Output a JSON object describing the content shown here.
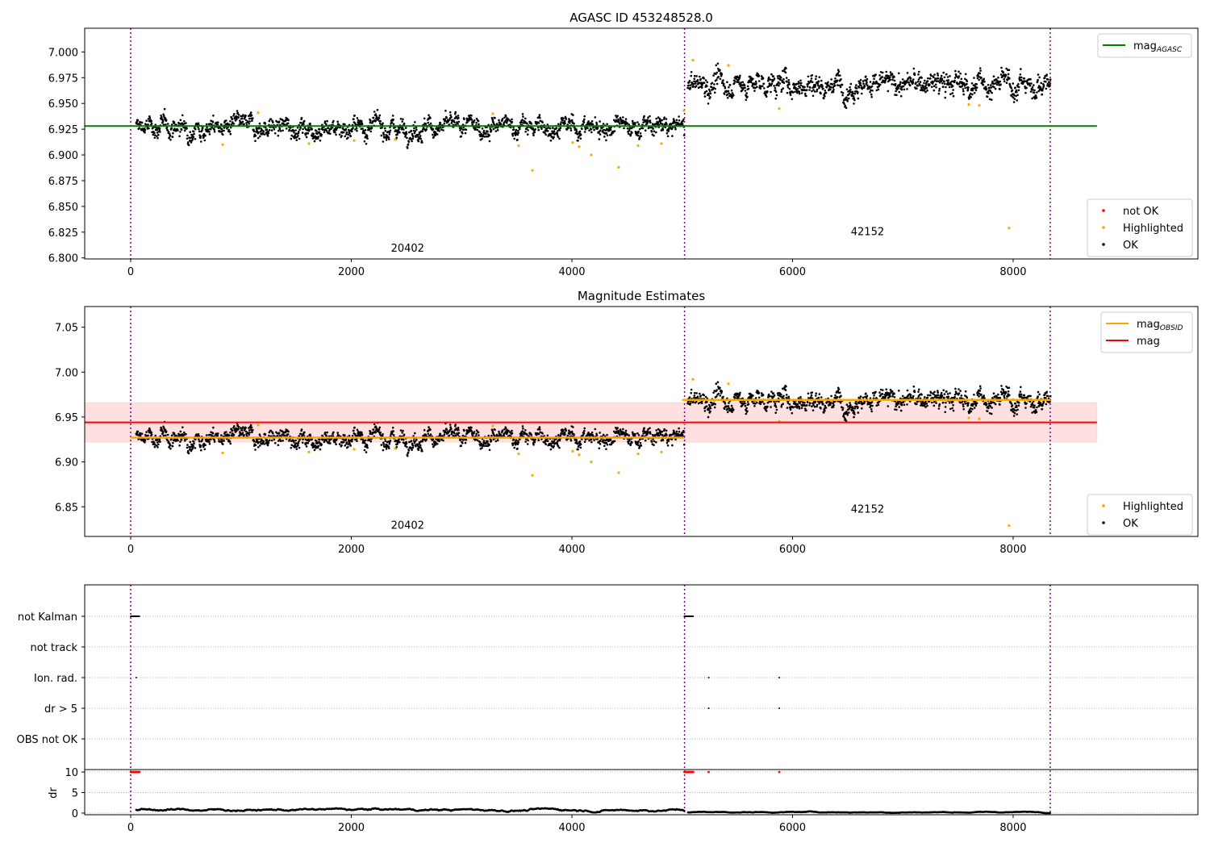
{
  "chart_data": [
    {
      "type": "scatter",
      "title": "AGASC ID 453248528.0",
      "xlim": [
        -417,
        9675
      ],
      "ylim": [
        6.799,
        7.023
      ],
      "yticks": [
        "6.800",
        "6.825",
        "6.850",
        "6.875",
        "6.900",
        "6.925",
        "6.950",
        "6.975",
        "7.000"
      ],
      "xticks": [
        "0",
        "2000",
        "4000",
        "6000",
        "8000"
      ],
      "legend_lines": [
        {
          "label": "mag",
          "sub": "AGASC",
          "color": "#008000",
          "value": 6.928,
          "x_end": 8760
        }
      ],
      "legend_points": [
        {
          "label": "not OK",
          "color": "#ff0000"
        },
        {
          "label": "Highlighted",
          "color": "#ffa500"
        },
        {
          "label": "OK",
          "color": "#000000"
        }
      ],
      "obsid_labels": [
        {
          "text": "20402",
          "x": 2510,
          "y": 6.81
        },
        {
          "text": "42152",
          "x": 6680,
          "y": 6.826
        }
      ]
    },
    {
      "type": "scatter",
      "title": "Magnitude Estimates",
      "xlim": [
        -417,
        9675
      ],
      "ylim": [
        6.817,
        7.073
      ],
      "yticks": [
        "6.85",
        "6.90",
        "6.95",
        "7.00",
        "7.05"
      ],
      "xticks": [
        "0",
        "2000",
        "4000",
        "6000",
        "8000"
      ],
      "mag": {
        "label": "mag",
        "color": "#ff0000",
        "value": 6.944,
        "band": [
          6.922,
          6.966
        ],
        "x_end": 8760
      },
      "mag_obsid": {
        "label": "mag",
        "sub": "OBSID",
        "color": "#ffa500"
      },
      "legend_points": [
        {
          "label": "Highlighted",
          "color": "#ffa500"
        },
        {
          "label": "OK",
          "color": "#000000"
        }
      ],
      "obsid_labels": [
        {
          "text": "20402",
          "x": 2510,
          "y": 6.83
        },
        {
          "text": "42152",
          "x": 6680,
          "y": 6.848
        }
      ]
    },
    {
      "type": "scatter",
      "title": "",
      "xlim": [
        -417,
        9675
      ],
      "flag_rows": [
        "not Kalman",
        "not track",
        "Ion. rad.",
        "dr > 5",
        "OBS not OK"
      ],
      "flags": {
        "not Kalman": [
          [
            0,
            80
          ],
          [
            5020,
            5100
          ]
        ],
        "Ion. rad.": [
          50,
          5240,
          5880
        ],
        "dr > 5": [
          5240,
          5880
        ]
      },
      "dr": {
        "ylabel": "dr",
        "yticks": [
          "0",
          "5",
          "10"
        ],
        "ylim": [
          -0.4,
          10.6
        ],
        "red_at_10": [
          5240,
          5880
        ]
      },
      "xticks": [
        "0",
        "2000",
        "4000",
        "6000",
        "8000"
      ]
    }
  ],
  "segments": [
    {
      "obsid": "20402",
      "start": 50,
      "end": 5020,
      "mean": 6.927,
      "std": 0.005
    },
    {
      "obsid": "42152",
      "start": 5050,
      "end": 8340,
      "mean": 6.969,
      "std": 0.006
    }
  ],
  "obsid_boundaries": [
    0,
    5021,
    8336
  ],
  "highlighted": [
    [
      834,
      6.91
    ],
    [
      1155,
      6.941
    ],
    [
      1616,
      6.911
    ],
    [
      2026,
      6.914
    ],
    [
      2398,
      6.915
    ],
    [
      3283,
      6.94
    ],
    [
      3517,
      6.909
    ],
    [
      3642,
      6.885
    ],
    [
      4007,
      6.912
    ],
    [
      4066,
      6.908
    ],
    [
      4175,
      6.9
    ],
    [
      4424,
      6.888
    ],
    [
      4600,
      6.909
    ],
    [
      4812,
      6.911
    ],
    [
      5016,
      6.943
    ],
    [
      5097,
      6.992
    ],
    [
      5419,
      6.987
    ],
    [
      5879,
      6.945
    ],
    [
      7598,
      6.949
    ],
    [
      7693,
      6.948
    ],
    [
      7963,
      6.829
    ]
  ]
}
